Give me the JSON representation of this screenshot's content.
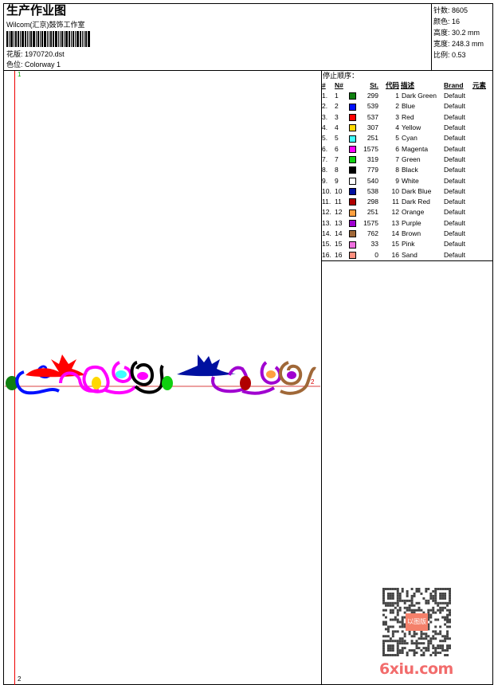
{
  "header": {
    "title": "生产作业图",
    "company": "Wilcom(汇京)鼓饰工作室",
    "design_label": "花版:",
    "design_file": "1970720.dst",
    "colorway_label": "色位:",
    "colorway": "Colorway 1"
  },
  "info": [
    {
      "label": "针数:",
      "value": "8605"
    },
    {
      "label": "颜色:",
      "value": "16"
    },
    {
      "label": "高度:",
      "value": "30.2 mm"
    },
    {
      "label": "宽度:",
      "value": "248.3 mm"
    },
    {
      "label": "比例:",
      "value": "0.53"
    }
  ],
  "markers": {
    "start": "1",
    "end_bottom": "2",
    "end_right": "2"
  },
  "stop_sequence": {
    "title": "停止顺序：",
    "columns": [
      "#",
      "N#",
      "St.",
      "代码",
      "描述",
      "Brand",
      "元素"
    ],
    "rows": [
      {
        "idx": "1.",
        "n": "1",
        "color": "#108010",
        "st": "299",
        "code": "1",
        "desc": "Dark Green",
        "brand": "Default"
      },
      {
        "idx": "2.",
        "n": "2",
        "color": "#0010ff",
        "st": "539",
        "code": "2",
        "desc": "Blue",
        "brand": "Default"
      },
      {
        "idx": "3.",
        "n": "3",
        "color": "#ff0000",
        "st": "537",
        "code": "3",
        "desc": "Red",
        "brand": "Default"
      },
      {
        "idx": "4.",
        "n": "4",
        "color": "#ffd800",
        "st": "307",
        "code": "4",
        "desc": "Yellow",
        "brand": "Default"
      },
      {
        "idx": "5.",
        "n": "5",
        "color": "#40ffff",
        "st": "251",
        "code": "5",
        "desc": "Cyan",
        "brand": "Default"
      },
      {
        "idx": "6.",
        "n": "6",
        "color": "#ff00ff",
        "st": "1575",
        "code": "6",
        "desc": "Magenta",
        "brand": "Default"
      },
      {
        "idx": "7.",
        "n": "7",
        "color": "#10d010",
        "st": "319",
        "code": "7",
        "desc": "Green",
        "brand": "Default"
      },
      {
        "idx": "8.",
        "n": "8",
        "color": "#000000",
        "st": "779",
        "code": "8",
        "desc": "Black",
        "brand": "Default"
      },
      {
        "idx": "9.",
        "n": "9",
        "color": "#ffffff",
        "st": "540",
        "code": "9",
        "desc": "White",
        "brand": "Default"
      },
      {
        "idx": "10.",
        "n": "10",
        "color": "#0010a0",
        "st": "538",
        "code": "10",
        "desc": "Dark Blue",
        "brand": "Default"
      },
      {
        "idx": "11.",
        "n": "11",
        "color": "#b00000",
        "st": "298",
        "code": "11",
        "desc": "Dark Red",
        "brand": "Default"
      },
      {
        "idx": "12.",
        "n": "12",
        "color": "#ffa040",
        "st": "251",
        "code": "12",
        "desc": "Orange",
        "brand": "Default"
      },
      {
        "idx": "13.",
        "n": "13",
        "color": "#a000d0",
        "st": "1575",
        "code": "13",
        "desc": "Purple",
        "brand": "Default"
      },
      {
        "idx": "14.",
        "n": "14",
        "color": "#a06838",
        "st": "762",
        "code": "14",
        "desc": "Brown",
        "brand": "Default"
      },
      {
        "idx": "15.",
        "n": "15",
        "color": "#f070e0",
        "st": "33",
        "code": "15",
        "desc": "Pink",
        "brand": "Default"
      },
      {
        "idx": "16.",
        "n": "16",
        "color": "#ff9080",
        "st": "0",
        "code": "16",
        "desc": "Sand",
        "brand": "Default"
      }
    ]
  },
  "watermark": {
    "qr_stamp": "以图版",
    "site": "6xiu.com"
  }
}
